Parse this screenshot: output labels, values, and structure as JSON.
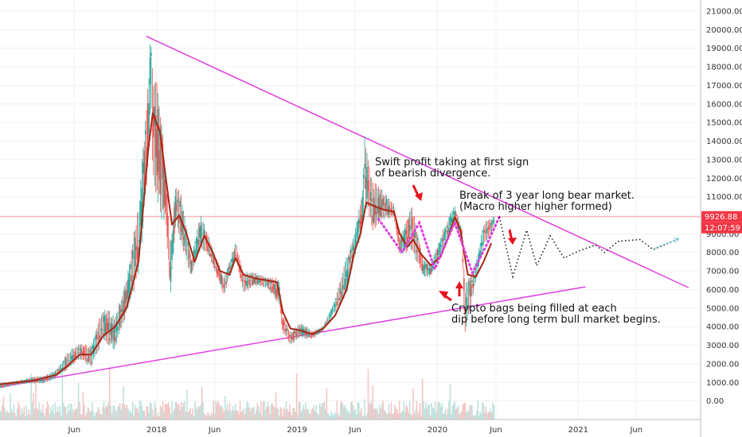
{
  "chart_data": {
    "type": "candlestick",
    "y_axis": {
      "position": "right",
      "ticks": [
        "21000.00",
        "20000.00",
        "19000.00",
        "18000.00",
        "17000.00",
        "16000.00",
        "15000.00",
        "14000.00",
        "13000.00",
        "12000.00",
        "11000.00",
        "10000.00",
        "9000.00",
        "8000.00",
        "7000.00",
        "6000.00",
        "5000.00",
        "4000.00",
        "3000.00",
        "2000.00",
        "1000.00",
        "0.00"
      ],
      "ylim": [
        -1000,
        21600
      ]
    },
    "x_axis": {
      "ticks": [
        {
          "label": "Jun",
          "date": "2017-06-01"
        },
        {
          "label": "2018",
          "date": "2018-01-01"
        },
        {
          "label": "Jun",
          "date": "2018-06-01"
        },
        {
          "label": "2019",
          "date": "2019-01-01"
        },
        {
          "label": "Jun",
          "date": "2019-06-01"
        },
        {
          "label": "2020",
          "date": "2020-01-01"
        },
        {
          "label": "Jun",
          "date": "2020-06-01"
        },
        {
          "label": "2021",
          "date": "2021-01-01"
        },
        {
          "label": "Jun",
          "date": "2021-06-01"
        }
      ],
      "xlim": [
        "2016-11-20",
        "2021-11-15"
      ]
    },
    "grid": true,
    "current_price": {
      "label": "9926.88",
      "value": 9926.88,
      "color": "#f23645"
    },
    "countdown": {
      "label": "12:07:59",
      "color": "#f23645"
    },
    "moving_average": {
      "color": "#a52714",
      "points": [
        [
          "2016-11-20",
          900
        ],
        [
          "2017-01-01",
          1000
        ],
        [
          "2017-02-15",
          1100
        ],
        [
          "2017-03-15",
          1250
        ],
        [
          "2017-04-15",
          1400
        ],
        [
          "2017-05-15",
          1900
        ],
        [
          "2017-06-15",
          2500
        ],
        [
          "2017-07-15",
          2500
        ],
        [
          "2017-08-15",
          3500
        ],
        [
          "2017-09-15",
          4000
        ],
        [
          "2017-10-15",
          5000
        ],
        [
          "2017-11-15",
          7500
        ],
        [
          "2017-12-10",
          13500
        ],
        [
          "2017-12-22",
          15500
        ],
        [
          "2018-01-10",
          14500
        ],
        [
          "2018-01-25",
          12000
        ],
        [
          "2018-02-10",
          9500
        ],
        [
          "2018-03-01",
          10000
        ],
        [
          "2018-03-20",
          9000
        ],
        [
          "2018-04-10",
          7500
        ],
        [
          "2018-05-05",
          8900
        ],
        [
          "2018-05-25",
          8100
        ],
        [
          "2018-06-15",
          7000
        ],
        [
          "2018-07-10",
          6800
        ],
        [
          "2018-07-25",
          7700
        ],
        [
          "2018-08-15",
          6800
        ],
        [
          "2018-09-15",
          6600
        ],
        [
          "2018-10-15",
          6500
        ],
        [
          "2018-11-10",
          6400
        ],
        [
          "2018-11-25",
          4800
        ],
        [
          "2018-12-15",
          3900
        ],
        [
          "2019-01-10",
          3800
        ],
        [
          "2019-02-10",
          3600
        ],
        [
          "2019-03-10",
          3900
        ],
        [
          "2019-04-10",
          4600
        ],
        [
          "2019-05-10",
          6000
        ],
        [
          "2019-05-30",
          8000
        ],
        [
          "2019-06-15",
          9000
        ],
        [
          "2019-06-30",
          10700
        ],
        [
          "2019-07-20",
          10500
        ],
        [
          "2019-08-15",
          10300
        ],
        [
          "2019-09-10",
          10200
        ],
        [
          "2019-09-25",
          9000
        ],
        [
          "2019-10-15",
          8300
        ],
        [
          "2019-10-30",
          8700
        ],
        [
          "2019-11-20",
          7900
        ],
        [
          "2019-12-15",
          7300
        ],
        [
          "2020-01-10",
          7800
        ],
        [
          "2020-02-01",
          9000
        ],
        [
          "2020-02-15",
          9900
        ],
        [
          "2020-03-01",
          9200
        ],
        [
          "2020-03-20",
          6800
        ],
        [
          "2020-04-10",
          6700
        ],
        [
          "2020-04-30",
          7500
        ],
        [
          "2020-05-20",
          8500
        ]
      ]
    },
    "price": [
      [
        "2016-11-20",
        700,
        950
      ],
      [
        "2017-01-01",
        900,
        1050
      ],
      [
        "2017-02-15",
        1000,
        1250
      ],
      [
        "2017-03-15",
        1000,
        1300
      ],
      [
        "2017-04-15",
        1300,
        1600
      ],
      [
        "2017-05-15",
        1800,
        2500
      ],
      [
        "2017-06-15",
        2400,
        3000
      ],
      [
        "2017-07-15",
        2000,
        2800
      ],
      [
        "2017-08-15",
        3500,
        4800
      ],
      [
        "2017-09-15",
        3000,
        4300
      ],
      [
        "2017-10-15",
        5000,
        6300
      ],
      [
        "2017-11-15",
        7200,
        10000
      ],
      [
        "2017-12-10",
        13000,
        16500
      ],
      [
        "2017-12-17",
        16500,
        19500
      ],
      [
        "2017-12-22",
        13000,
        17000
      ],
      [
        "2018-01-10",
        11000,
        15500
      ],
      [
        "2018-01-25",
        10000,
        12000
      ],
      [
        "2018-02-06",
        6000,
        8000
      ],
      [
        "2018-02-20",
        10000,
        11500
      ],
      [
        "2018-03-10",
        8500,
        10500
      ],
      [
        "2018-04-01",
        6800,
        7500
      ],
      [
        "2018-04-25",
        8500,
        9800
      ],
      [
        "2018-05-20",
        7800,
        8500
      ],
      [
        "2018-06-25",
        5800,
        6500
      ],
      [
        "2018-07-25",
        7800,
        8400
      ],
      [
        "2018-08-15",
        6000,
        6800
      ],
      [
        "2018-09-15",
        6300,
        6800
      ],
      [
        "2018-10-15",
        6200,
        6600
      ],
      [
        "2018-11-15",
        5400,
        6400
      ],
      [
        "2018-11-25",
        3800,
        4500
      ],
      [
        "2018-12-15",
        3150,
        3600
      ],
      [
        "2019-01-10",
        3500,
        4100
      ],
      [
        "2019-02-10",
        3400,
        3700
      ],
      [
        "2019-03-10",
        3800,
        4000
      ],
      [
        "2019-04-10",
        4900,
        5400
      ],
      [
        "2019-05-10",
        6000,
        7500
      ],
      [
        "2019-05-30",
        7900,
        8800
      ],
      [
        "2019-06-20",
        9500,
        11000
      ],
      [
        "2019-06-26",
        11500,
        13800
      ],
      [
        "2019-07-15",
        9500,
        11500
      ],
      [
        "2019-08-15",
        10000,
        11000
      ],
      [
        "2019-09-10",
        10000,
        10500
      ],
      [
        "2019-09-25",
        8000,
        8600
      ],
      [
        "2019-10-26",
        8500,
        10300
      ],
      [
        "2019-11-25",
        6800,
        7500
      ],
      [
        "2019-12-15",
        6800,
        7300
      ],
      [
        "2020-01-15",
        8300,
        9000
      ],
      [
        "2020-02-14",
        9800,
        10500
      ],
      [
        "2020-03-05",
        8500,
        9200
      ],
      [
        "2020-03-12",
        3850,
        5800
      ],
      [
        "2020-04-10",
        6600,
        7300
      ],
      [
        "2020-04-30",
        8500,
        9400
      ],
      [
        "2020-05-20",
        9100,
        9700
      ],
      [
        "2020-05-28",
        9600,
        9927
      ]
    ],
    "trendlines": [
      {
        "color": "#e040e0",
        "from": [
          "2017-12-05",
          19650
        ],
        "to": [
          "2021-10-15",
          6100
        ]
      },
      {
        "color": "#e040e0",
        "from": [
          "2016-11-20",
          750
        ],
        "to": [
          "2021-01-20",
          6150
        ]
      }
    ],
    "dotted_projection_magenta": [
      [
        "2019-08-01",
        9800
      ],
      [
        "2019-10-01",
        8000
      ],
      [
        "2019-11-15",
        9600
      ],
      [
        "2019-12-25",
        7100
      ],
      [
        "2020-02-15",
        9600
      ],
      [
        "2020-04-01",
        6900
      ],
      [
        "2020-05-10",
        8500
      ],
      [
        "2020-06-10",
        9920
      ]
    ],
    "dotted_projection_black": [
      [
        "2020-06-10",
        9920
      ],
      [
        "2020-07-15",
        6700
      ],
      [
        "2020-08-20",
        9200
      ],
      [
        "2020-09-15",
        7300
      ],
      [
        "2020-10-20",
        8900
      ],
      [
        "2020-11-25",
        7700
      ],
      [
        "2021-01-05",
        8100
      ],
      [
        "2021-02-15",
        8400
      ],
      [
        "2021-03-10",
        8000
      ],
      [
        "2021-04-15",
        8600
      ],
      [
        "2021-06-10",
        8700
      ],
      [
        "2021-07-15",
        8150
      ],
      [
        "2021-09-20",
        8750
      ]
    ],
    "projection_arrow": {
      "color": "#7fd3e0",
      "from": [
        "2021-07-15",
        8200
      ],
      "to": [
        "2021-09-20",
        8750
      ]
    },
    "annotations": [
      {
        "lines": [
          "Swift profit taking at first sign",
          "of bearish divergence."
        ]
      },
      {
        "lines": [
          "Break of 3 year long bear market.",
          "(Macro higher higher formed)"
        ]
      },
      {
        "lines": [
          "Crypto bags being filled at each",
          "dip before long term bull market begins."
        ]
      }
    ],
    "markers_red_arrows": 4
  }
}
